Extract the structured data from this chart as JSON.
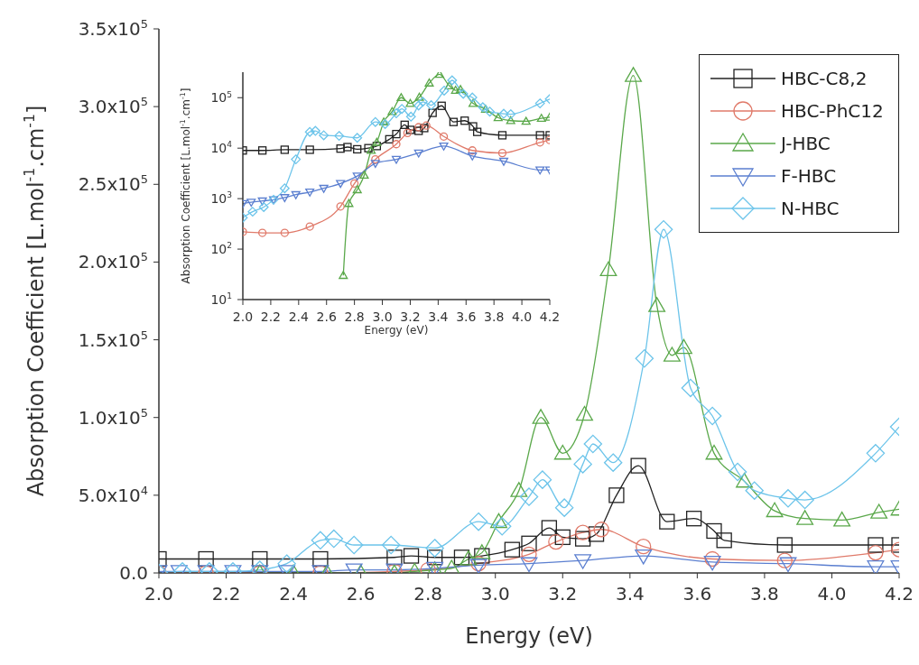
{
  "chart_data": [
    {
      "type": "line",
      "xlabel": "Energy (eV)",
      "ylabel": "Absorption Coefficient [L.mol$^{-1}$.cm$^{-1}$]",
      "xlim": [
        2.0,
        4.2
      ],
      "xticks": [
        {
          "value": 2.0,
          "label": "2.0"
        },
        2.2,
        2.4,
        2.6,
        2.8,
        {
          "value": 3.0,
          "label": "3.0"
        },
        3.2,
        3.4,
        3.6,
        3.8,
        {
          "value": 4.0,
          "label": "4.0"
        },
        4.2
      ],
      "ylim": [
        0,
        350000
      ],
      "yticks": [
        {
          "value": 0,
          "label": "0.0"
        },
        {
          "value": 50000,
          "label": "5.0x10$^{4}$"
        },
        {
          "value": 100000,
          "label": "1.0x10$^{5}$"
        },
        {
          "value": 150000,
          "label": "1.5x10$^{5}$"
        },
        {
          "value": 200000,
          "label": "2.0x10$^{5}$"
        },
        {
          "value": 250000,
          "label": "2.5x10$^{5}$"
        },
        {
          "value": 300000,
          "label": "3.0x10$^{5}$"
        },
        {
          "value": 350000,
          "label": "3.5x10$^{5}$"
        }
      ],
      "grid": false,
      "legend": "top right",
      "series": [
        {
          "name": "HBC-C8,2",
          "color": "#222222",
          "marker": "square",
          "x": [
            2.0,
            2.14,
            2.3,
            2.48,
            2.7,
            2.75,
            2.82,
            2.9,
            2.96,
            3.05,
            3.1,
            3.16,
            3.2,
            3.26,
            3.3,
            3.36,
            3.425,
            3.51,
            3.59,
            3.65,
            3.68,
            3.86,
            4.13,
            4.2
          ],
          "values": [
            9000,
            9000,
            9000,
            9000,
            10000,
            11000,
            10000,
            10000,
            11000,
            15000,
            19000,
            29000,
            23000,
            22000,
            25000,
            50000,
            69000,
            33000,
            35000,
            27000,
            21000,
            18000,
            18000,
            18000
          ]
        },
        {
          "name": "HBC-PhC12",
          "color": "#e07a6a",
          "marker": "circle",
          "x": [
            2.0,
            2.14,
            2.3,
            2.48,
            2.7,
            2.8,
            2.95,
            3.1,
            3.18,
            3.26,
            3.315,
            3.44,
            3.645,
            3.86,
            4.13,
            4.2
          ],
          "values": [
            0,
            0,
            0,
            0,
            1000,
            2000,
            6000,
            12000,
            20000,
            26000,
            28000,
            17000,
            9000,
            8000,
            13000,
            15000
          ]
        },
        {
          "name": "J-HBC",
          "color": "#5aa84a",
          "marker": "triangle",
          "x": [
            2.3,
            2.4,
            2.5,
            2.6,
            2.7,
            2.76,
            2.82,
            2.87,
            2.92,
            2.96,
            3.01,
            3.07,
            3.135,
            3.2,
            3.265,
            3.336,
            3.41,
            3.48,
            3.525,
            3.56,
            3.65,
            3.74,
            3.83,
            3.92,
            4.03,
            4.14,
            4.2
          ],
          "values": [
            0,
            0,
            0,
            0,
            0,
            1000,
            2000,
            3000,
            9000,
            13000,
            33000,
            53000,
            100000,
            77000,
            102000,
            195000,
            320000,
            172000,
            140000,
            145000,
            77000,
            59000,
            40000,
            35000,
            34000,
            39000,
            41000
          ]
        },
        {
          "name": "F-HBC",
          "color": "#5b7fd0",
          "marker": "triangle-down",
          "x": [
            2.0,
            2.06,
            2.14,
            2.22,
            2.3,
            2.38,
            2.48,
            2.58,
            2.7,
            2.82,
            2.95,
            3.1,
            3.26,
            3.44,
            3.645,
            3.87,
            4.13,
            4.2
          ],
          "values": [
            1000,
            1000,
            1000,
            1000,
            1000,
            1000,
            1000,
            2000,
            2000,
            3000,
            5000,
            6000,
            8000,
            11000,
            7000,
            6000,
            4000,
            4000
          ]
        },
        {
          "name": "N-HBC",
          "color": "#6cc4ea",
          "marker": "diamond",
          "x": [
            2.0,
            2.07,
            2.15,
            2.22,
            2.3,
            2.38,
            2.48,
            2.52,
            2.58,
            2.69,
            2.82,
            2.95,
            3.02,
            3.1,
            3.14,
            3.205,
            3.26,
            3.29,
            3.35,
            3.443,
            3.5,
            3.58,
            3.645,
            3.72,
            3.77,
            3.87,
            3.92,
            4.13,
            4.2
          ],
          "values": [
            0,
            1000,
            1000,
            1000,
            2000,
            6000,
            21000,
            22000,
            18000,
            18000,
            16000,
            33000,
            30000,
            49000,
            60000,
            42000,
            70000,
            83000,
            71000,
            138000,
            221000,
            119000,
            101000,
            65000,
            53000,
            48000,
            47000,
            77000,
            94000
          ]
        }
      ]
    },
    {
      "type": "line",
      "xlabel": "Energy (eV)",
      "ylabel": "Absorption Coefficient [L.mol$^{-1}$.cm$^{-1}$]",
      "xlim": [
        2.0,
        4.2
      ],
      "xticks": [
        {
          "value": 2.0,
          "label": "2.0"
        },
        2.2,
        2.4,
        2.6,
        2.8,
        {
          "value": 3.0,
          "label": "3.0"
        },
        3.2,
        3.4,
        3.6,
        3.8,
        {
          "value": 4.0,
          "label": "4.0"
        },
        4.2
      ],
      "log": "y",
      "ylim": [
        10,
        320000
      ],
      "yticks": [
        {
          "value": 10,
          "label": "10$^{1}$"
        },
        {
          "value": 100,
          "label": "10$^{2}$"
        },
        {
          "value": 1000,
          "label": "10$^{3}$"
        },
        {
          "value": 10000,
          "label": "10$^{4}$"
        },
        {
          "value": 100000,
          "label": "10$^{5}$"
        }
      ],
      "grid": false,
      "series": [
        {
          "color": "#222222",
          "marker": "square",
          "x": [
            2.0,
            2.14,
            2.3,
            2.48,
            2.7,
            2.75,
            2.82,
            2.9,
            2.96,
            3.05,
            3.1,
            3.16,
            3.2,
            3.26,
            3.3,
            3.36,
            3.425,
            3.51,
            3.59,
            3.65,
            3.68,
            3.86,
            4.13,
            4.2
          ],
          "values": [
            9000,
            9000,
            9300,
            9300,
            9800,
            10500,
            9500,
            10000,
            11000,
            15000,
            19000,
            29000,
            23000,
            22000,
            25000,
            50000,
            69000,
            33000,
            35000,
            27000,
            21000,
            18000,
            18000,
            18000
          ]
        },
        {
          "color": "#e07a6a",
          "marker": "circle",
          "x": [
            2.0,
            2.14,
            2.3,
            2.48,
            2.7,
            2.8,
            2.95,
            3.1,
            3.18,
            3.26,
            3.315,
            3.44,
            3.645,
            3.86,
            4.13,
            4.2
          ],
          "values": [
            220,
            210,
            210,
            280,
            700,
            2000,
            6000,
            12000,
            20000,
            26000,
            28000,
            17000,
            9000,
            8000,
            13000,
            14500
          ]
        },
        {
          "color": "#5aa84a",
          "marker": "triangle",
          "x": [
            2.72,
            2.76,
            2.82,
            2.87,
            2.92,
            2.96,
            3.01,
            3.07,
            3.135,
            3.2,
            3.265,
            3.336,
            3.41,
            3.48,
            3.525,
            3.56,
            3.65,
            3.74,
            3.83,
            3.92,
            4.03,
            4.14,
            4.2
          ],
          "values": [
            30,
            800,
            1500,
            2900,
            9000,
            13000,
            33000,
            53000,
            100000,
            77000,
            102000,
            195000,
            290000,
            172000,
            140000,
            145000,
            77000,
            59000,
            40000,
            35000,
            34000,
            39000,
            41000
          ]
        },
        {
          "color": "#5b7fd0",
          "marker": "triangle-down",
          "x": [
            2.0,
            2.06,
            2.14,
            2.22,
            2.3,
            2.38,
            2.48,
            2.58,
            2.7,
            2.82,
            2.95,
            3.1,
            3.26,
            3.44,
            3.645,
            3.87,
            4.13,
            4.2
          ],
          "values": [
            800,
            850,
            900,
            950,
            1050,
            1200,
            1350,
            1600,
            2000,
            2800,
            5000,
            6000,
            8000,
            11000,
            7000,
            5500,
            3700,
            3700
          ]
        },
        {
          "color": "#6cc4ea",
          "marker": "diamond",
          "x": [
            2.0,
            2.07,
            2.15,
            2.22,
            2.3,
            2.38,
            2.48,
            2.52,
            2.58,
            2.69,
            2.82,
            2.95,
            3.02,
            3.1,
            3.14,
            3.205,
            3.26,
            3.29,
            3.35,
            3.443,
            3.5,
            3.58,
            3.645,
            3.72,
            3.77,
            3.87,
            3.92,
            4.13,
            4.2
          ],
          "values": [
            420,
            550,
            680,
            950,
            1600,
            6000,
            21000,
            22000,
            18000,
            17500,
            16000,
            33000,
            30000,
            49000,
            60000,
            42000,
            70000,
            83000,
            71000,
            138000,
            221000,
            119000,
            101000,
            65000,
            53000,
            48000,
            47000,
            77000,
            94000
          ]
        }
      ]
    }
  ]
}
